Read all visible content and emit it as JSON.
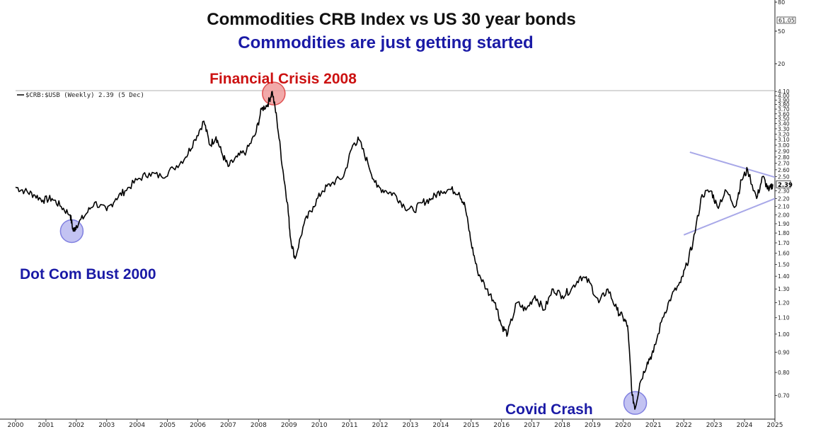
{
  "chart_data": {
    "type": "line",
    "title": "Commodities CRB Index vs US 30 year bonds",
    "subtitle": "Commodities are just getting started",
    "title_color": "#111111",
    "subtitle_color": "#1a1aa6",
    "legend": "$CRB:$USB (Weekly) 2.39 (5 Dec)",
    "legend_placement": "top-left",
    "upper_panel": {
      "labels": [
        "80",
        "50",
        "20"
      ],
      "values": [
        80,
        50,
        20
      ],
      "current_label": "61.05",
      "current_value": 61.05
    },
    "y_scale": "log",
    "ylim": [
      0.62,
      4.12
    ],
    "xlim": [
      2000,
      2025.0
    ],
    "y_ticks": [
      {
        "v": 4.1,
        "label": "4.10"
      },
      {
        "v": 4.0,
        "label": "4.00"
      },
      {
        "v": 3.9,
        "label": "3.90"
      },
      {
        "v": 3.8,
        "label": "3.80"
      },
      {
        "v": 3.7,
        "label": "3.70"
      },
      {
        "v": 3.6,
        "label": "3.60"
      },
      {
        "v": 3.5,
        "label": "3.50"
      },
      {
        "v": 3.4,
        "label": "3.40"
      },
      {
        "v": 3.3,
        "label": "3.30"
      },
      {
        "v": 3.2,
        "label": "3.20"
      },
      {
        "v": 3.1,
        "label": "3.10"
      },
      {
        "v": 3.0,
        "label": "3.00"
      },
      {
        "v": 2.9,
        "label": "2.90"
      },
      {
        "v": 2.8,
        "label": "2.80"
      },
      {
        "v": 2.7,
        "label": "2.70"
      },
      {
        "v": 2.6,
        "label": "2.60"
      },
      {
        "v": 2.5,
        "label": "2.50"
      },
      {
        "v": 2.3,
        "label": "2.30"
      },
      {
        "v": 2.2,
        "label": "2.20"
      },
      {
        "v": 2.1,
        "label": "2.10"
      },
      {
        "v": 2.0,
        "label": "2.00"
      },
      {
        "v": 1.9,
        "label": "1.90"
      },
      {
        "v": 1.8,
        "label": "1.80"
      },
      {
        "v": 1.7,
        "label": "1.70"
      },
      {
        "v": 1.6,
        "label": "1.60"
      },
      {
        "v": 1.5,
        "label": "1.50"
      },
      {
        "v": 1.4,
        "label": "1.40"
      },
      {
        "v": 1.3,
        "label": "1.30"
      },
      {
        "v": 1.2,
        "label": "1.20"
      },
      {
        "v": 1.1,
        "label": "1.10"
      },
      {
        "v": 1.0,
        "label": "1.00"
      },
      {
        "v": 0.9,
        "label": "0.90"
      },
      {
        "v": 0.8,
        "label": "0.80"
      },
      {
        "v": 0.7,
        "label": "0.70"
      }
    ],
    "current_value_label": "2.39",
    "current_value": 2.39,
    "x_ticks": [
      "2000",
      "2001",
      "2002",
      "2003",
      "2004",
      "2005",
      "2006",
      "2007",
      "2008",
      "2009",
      "2010",
      "2011",
      "2012",
      "2013",
      "2014",
      "2015",
      "2016",
      "2017",
      "2018",
      "2019",
      "2020",
      "2021",
      "2022",
      "2023",
      "2024",
      "2025"
    ],
    "series": [
      {
        "x": [
          2000.0,
          2000.3,
          2000.6,
          2000.9,
          2001.2,
          2001.5,
          2001.8,
          2001.9,
          2002.0,
          2002.3,
          2002.6,
          2003.0,
          2003.3,
          2003.6,
          2004.0,
          2004.4,
          2004.8,
          2005.2,
          2005.6,
          2005.9,
          2006.2,
          2006.4,
          2006.6,
          2006.8,
          2007.0,
          2007.3,
          2007.6,
          2007.9,
          2008.1,
          2008.3,
          2008.45,
          2008.6,
          2008.8,
          2008.95,
          2009.05,
          2009.2,
          2009.5,
          2009.8,
          2010.1,
          2010.4,
          2010.8,
          2011.1,
          2011.3,
          2011.6,
          2011.9,
          2012.2,
          2012.5,
          2012.8,
          2013.1,
          2013.4,
          2013.7,
          2014.0,
          2014.3,
          2014.6,
          2014.8,
          2015.0,
          2015.2,
          2015.5,
          2015.8,
          2016.0,
          2016.2,
          2016.5,
          2016.8,
          2017.1,
          2017.4,
          2017.7,
          2018.0,
          2018.3,
          2018.6,
          2018.9,
          2019.2,
          2019.5,
          2019.8,
          2020.0,
          2020.15,
          2020.3,
          2020.4,
          2020.55,
          2020.8,
          2021.0,
          2021.3,
          2021.6,
          2021.9,
          2022.1,
          2022.3,
          2022.6,
          2022.9,
          2023.1,
          2023.4,
          2023.7,
          2023.9,
          2024.1,
          2024.4,
          2024.6,
          2024.8,
          2024.93
        ],
        "y": [
          2.35,
          2.3,
          2.25,
          2.18,
          2.2,
          2.1,
          2.0,
          1.82,
          1.88,
          2.0,
          2.15,
          2.05,
          2.2,
          2.3,
          2.45,
          2.55,
          2.5,
          2.62,
          2.8,
          3.1,
          3.45,
          3.0,
          3.15,
          2.85,
          2.65,
          2.8,
          2.9,
          3.2,
          3.7,
          3.8,
          4.1,
          3.5,
          2.6,
          2.15,
          1.75,
          1.55,
          1.9,
          2.1,
          2.3,
          2.4,
          2.5,
          3.0,
          3.1,
          2.7,
          2.35,
          2.3,
          2.25,
          2.1,
          2.05,
          2.15,
          2.2,
          2.3,
          2.32,
          2.28,
          2.1,
          1.7,
          1.45,
          1.3,
          1.2,
          1.05,
          1.0,
          1.2,
          1.15,
          1.25,
          1.15,
          1.3,
          1.25,
          1.3,
          1.4,
          1.35,
          1.2,
          1.3,
          1.15,
          1.1,
          1.05,
          0.7,
          0.65,
          0.75,
          0.85,
          0.9,
          1.1,
          1.25,
          1.35,
          1.5,
          1.7,
          2.25,
          2.3,
          2.1,
          2.3,
          2.1,
          2.45,
          2.6,
          2.2,
          2.5,
          2.3,
          2.39
        ]
      }
    ],
    "trendlines": [
      {
        "x": [
          2022.2,
          2025.0
        ],
        "y": [
          2.88,
          2.49
        ]
      },
      {
        "x": [
          2022.0,
          2025.0
        ],
        "y": [
          1.78,
          2.2
        ]
      }
    ],
    "annotations": [
      {
        "text": "Financial Crisis 2008",
        "color": "#cc1111",
        "circle_fill": "#f09a9a",
        "circle_stroke": "#e05050",
        "target_x": 2008.5,
        "target_y": 4.05
      },
      {
        "text": "Dot Com Bust 2000",
        "color": "#1a1aa6",
        "circle_fill": "#b8b8f0",
        "circle_stroke": "#8080e0",
        "target_x": 2001.85,
        "target_y": 1.82
      },
      {
        "text": "Covid Crash",
        "color": "#1a1aa6",
        "circle_fill": "#b8b8f0",
        "circle_stroke": "#8080e0",
        "target_x": 2020.4,
        "target_y": 0.67
      }
    ],
    "trendline_color": "#a8a8e8",
    "line_color": "#000000",
    "grid": false
  }
}
